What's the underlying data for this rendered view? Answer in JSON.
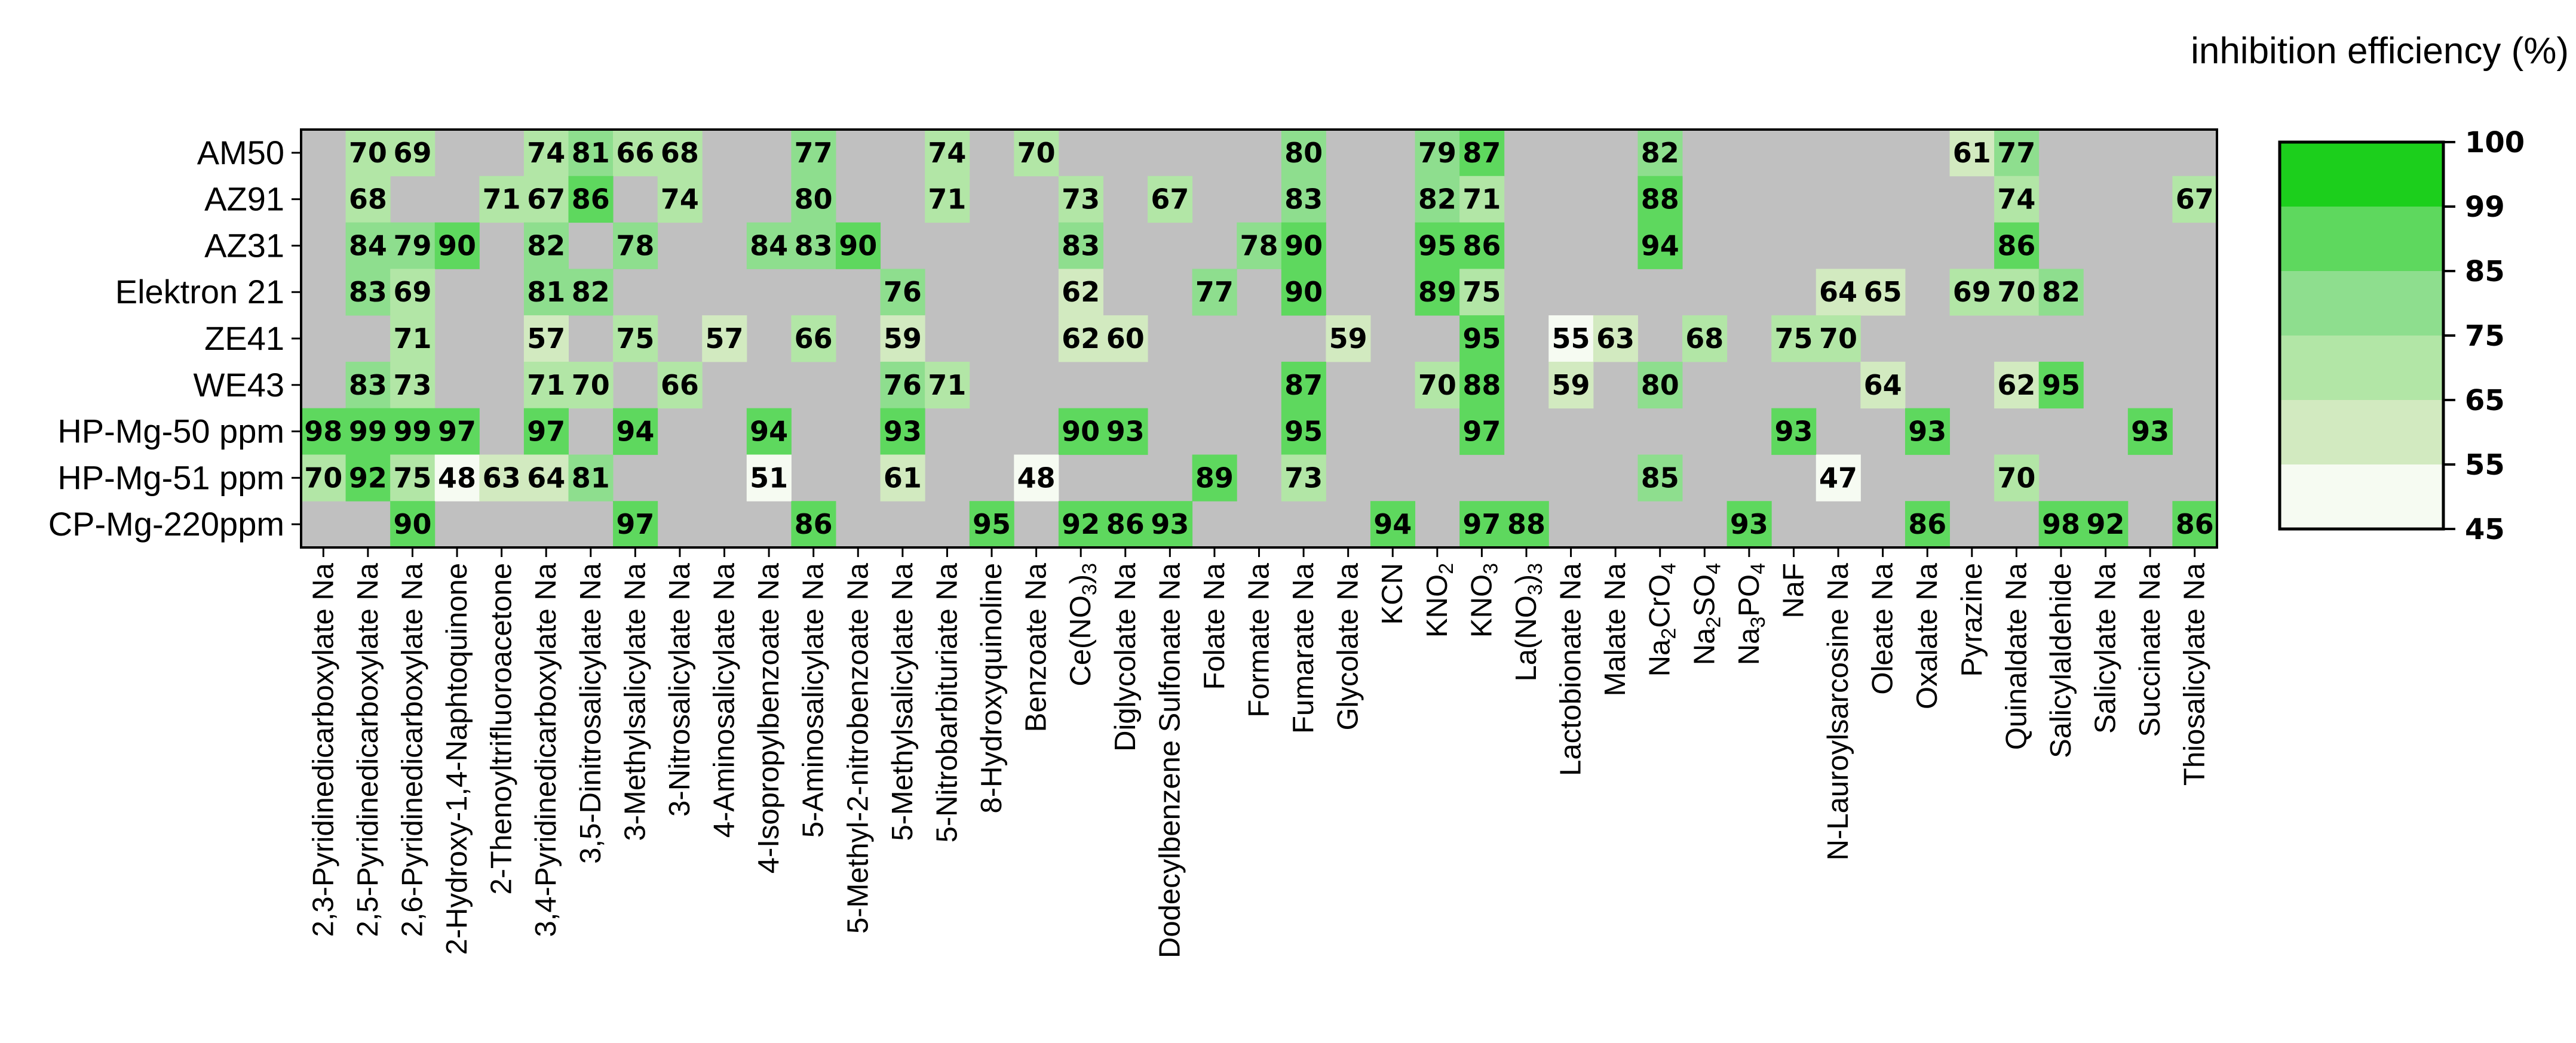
{
  "chart_data": {
    "type": "heatmap",
    "title": "",
    "colorbar_title": "inhibition efficiency (%)",
    "colorbar_ticks": [
      "100",
      "99",
      "85",
      "75",
      "65",
      "55",
      "45"
    ],
    "colorbar_bins": [
      {
        "min": 99,
        "max": 100,
        "color": "#1ccf1c"
      },
      {
        "min": 85,
        "max": 99,
        "color": "#5ed85e"
      },
      {
        "min": 75,
        "max": 85,
        "color": "#8ede8e"
      },
      {
        "min": 65,
        "max": 75,
        "color": "#b2e6a6"
      },
      {
        "min": 55,
        "max": 65,
        "color": "#d2eac0"
      },
      {
        "min": 45,
        "max": 55,
        "color": "#f6fbf2"
      }
    ],
    "missing_color": "#c0c0c0",
    "rows": [
      "AM50",
      "AZ91",
      "AZ31",
      "Elektron 21",
      "ZE41",
      "WE43",
      "HP-Mg-50 ppm",
      "HP-Mg-51 ppm",
      "CP-Mg-220ppm"
    ],
    "columns": [
      {
        "label": "2,3-Pyridinedicarboxylate Na"
      },
      {
        "label": "2,5-Pyridinedicarboxylate Na"
      },
      {
        "label": "2,6-Pyridinedicarboxylate Na"
      },
      {
        "label": "2-Hydroxy-1,4-Naphtoquinone"
      },
      {
        "label": "2-Thenoyltrifluoroacetone"
      },
      {
        "label": "3,4-Pyridinedicarboxylate Na"
      },
      {
        "label": "3,5-Dinitrosalicylate Na"
      },
      {
        "label": "3-Methylsalicylate Na"
      },
      {
        "label": "3-Nitrosalicylate Na"
      },
      {
        "label": "4-Aminosalicylate Na"
      },
      {
        "label": "4-Isopropylbenzoate Na"
      },
      {
        "label": "5-Aminosalicylate Na"
      },
      {
        "label": "5-Methyl-2-nitrobenzoate Na"
      },
      {
        "label": "5-Methylsalicylate Na"
      },
      {
        "label": "5-Nitrobarbituriate Na"
      },
      {
        "label": "8-Hydroxyquinoline"
      },
      {
        "label": "Benzoate Na"
      },
      {
        "label": "Ce(NO3)3",
        "base": "Ce(NO",
        "sub": "3",
        "after": ")",
        "sub2": "3"
      },
      {
        "label": "Diglycolate Na"
      },
      {
        "label": "Dodecylbenzene Sulfonate Na"
      },
      {
        "label": "Folate Na"
      },
      {
        "label": "Formate Na"
      },
      {
        "label": "Fumarate Na"
      },
      {
        "label": "Glycolate Na"
      },
      {
        "label": "KCN"
      },
      {
        "label": "KNO2",
        "base": "KNO",
        "sub": "2"
      },
      {
        "label": "KNO3",
        "base": "KNO",
        "sub": "3"
      },
      {
        "label": "La(NO3)3",
        "base": "La(NO",
        "sub": "3",
        "after": ")",
        "sub2": "3"
      },
      {
        "label": "Lactobionate Na"
      },
      {
        "label": "Malate Na"
      },
      {
        "label": "Na2CrO4",
        "base": "Na",
        "sub": "2",
        "after": "CrO",
        "sub2": "4"
      },
      {
        "label": "Na2SO4",
        "base": "Na",
        "sub": "2",
        "after": "SO",
        "sub2": "4"
      },
      {
        "label": "Na3PO4",
        "base": "Na",
        "sub": "3",
        "after": "PO",
        "sub2": "4"
      },
      {
        "label": "NaF"
      },
      {
        "label": "N-Lauroylsarcosine Na"
      },
      {
        "label": "Oleate Na"
      },
      {
        "label": "Oxalate Na"
      },
      {
        "label": "Pyrazine"
      },
      {
        "label": "Quinaldate Na"
      },
      {
        "label": "Salicylaldehide"
      },
      {
        "label": "Salicylate Na"
      },
      {
        "label": "Succinate Na"
      },
      {
        "label": "Thiosalicylate Na"
      }
    ],
    "values": [
      [
        null,
        70,
        69,
        null,
        null,
        74,
        81,
        66,
        68,
        null,
        null,
        77,
        null,
        null,
        74,
        null,
        70,
        null,
        null,
        null,
        null,
        null,
        80,
        null,
        null,
        79,
        87,
        null,
        null,
        null,
        82,
        null,
        null,
        null,
        null,
        null,
        null,
        61,
        77,
        null,
        null,
        null,
        null
      ],
      [
        null,
        68,
        null,
        null,
        71,
        67,
        86,
        null,
        74,
        null,
        null,
        80,
        null,
        null,
        71,
        null,
        null,
        73,
        null,
        67,
        null,
        null,
        83,
        null,
        null,
        82,
        71,
        null,
        null,
        null,
        88,
        null,
        null,
        null,
        null,
        null,
        null,
        null,
        74,
        null,
        null,
        null,
        67
      ],
      [
        null,
        84,
        79,
        90,
        null,
        82,
        null,
        78,
        null,
        null,
        84,
        83,
        90,
        null,
        null,
        null,
        null,
        83,
        null,
        null,
        null,
        78,
        90,
        null,
        null,
        95,
        86,
        null,
        null,
        null,
        94,
        null,
        null,
        null,
        null,
        null,
        null,
        null,
        86,
        null,
        null,
        null,
        null
      ],
      [
        null,
        83,
        69,
        null,
        null,
        81,
        82,
        null,
        null,
        null,
        null,
        null,
        null,
        76,
        null,
        null,
        null,
        62,
        null,
        null,
        77,
        null,
        90,
        null,
        null,
        89,
        75,
        null,
        null,
        null,
        null,
        null,
        null,
        null,
        64,
        65,
        null,
        69,
        70,
        82,
        null,
        null,
        null
      ],
      [
        null,
        null,
        71,
        null,
        null,
        57,
        null,
        75,
        null,
        57,
        null,
        66,
        null,
        59,
        null,
        null,
        null,
        62,
        60,
        null,
        null,
        null,
        null,
        59,
        null,
        null,
        95,
        null,
        55,
        63,
        null,
        68,
        null,
        75,
        70,
        null,
        null,
        null,
        null,
        null,
        null,
        null,
        null
      ],
      [
        null,
        83,
        73,
        null,
        null,
        71,
        70,
        null,
        66,
        null,
        null,
        null,
        null,
        76,
        71,
        null,
        null,
        null,
        null,
        null,
        null,
        null,
        87,
        null,
        null,
        70,
        88,
        null,
        59,
        null,
        80,
        null,
        null,
        null,
        null,
        64,
        null,
        null,
        62,
        95,
        null,
        null,
        null
      ],
      [
        98,
        99,
        99,
        97,
        null,
        97,
        null,
        94,
        null,
        null,
        94,
        null,
        null,
        93,
        null,
        null,
        null,
        90,
        93,
        null,
        null,
        null,
        95,
        null,
        null,
        null,
        97,
        null,
        null,
        null,
        null,
        null,
        null,
        93,
        null,
        null,
        93,
        null,
        null,
        null,
        null,
        93,
        null
      ],
      [
        70,
        92,
        75,
        48,
        63,
        64,
        81,
        null,
        null,
        null,
        51,
        null,
        null,
        61,
        null,
        null,
        48,
        null,
        null,
        null,
        89,
        null,
        73,
        null,
        null,
        null,
        null,
        null,
        null,
        null,
        85,
        null,
        null,
        null,
        47,
        null,
        null,
        null,
        70,
        null,
        null,
        null,
        null
      ],
      [
        null,
        null,
        90,
        null,
        null,
        null,
        null,
        97,
        null,
        null,
        null,
        86,
        null,
        null,
        null,
        95,
        null,
        92,
        86,
        93,
        null,
        null,
        null,
        null,
        94,
        null,
        97,
        88,
        null,
        null,
        null,
        null,
        93,
        null,
        null,
        null,
        86,
        null,
        null,
        98,
        92,
        null,
        86
      ]
    ]
  }
}
